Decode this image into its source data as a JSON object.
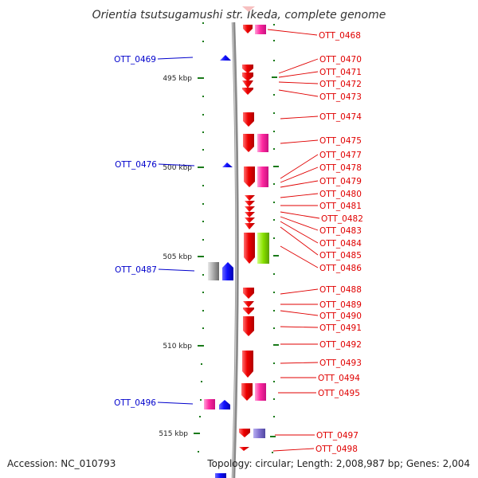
{
  "diagram": {
    "title": "Orientia tsutsugamushi str. Ikeda, complete genome",
    "accession": "Accession: NC_010793",
    "topology": "Topology: circular; Length: 2,008,987 bp; Genes: 2,004",
    "kbp_ticks": [
      "495 kbp",
      "500 kbp",
      "505 kbp",
      "510 kbp",
      "515 kbp"
    ],
    "colors": {
      "cds": "#ee0000",
      "rna": "#ff2aa0",
      "feature_gray": "#a8a8a8",
      "feature_green": "#88e000",
      "feature_purple": "#8070d0",
      "minus_strand": "#1010ff",
      "label_right": "#e00000",
      "label_left": "#0000cc",
      "backbone": "#888888",
      "tick": "#1a7a1a"
    },
    "right_labels": [
      "OTT_0468",
      "OTT_0470",
      "OTT_0471",
      "OTT_0472",
      "OTT_0473",
      "OTT_0474",
      "OTT_0475",
      "OTT_0477",
      "OTT_0478",
      "OTT_0479",
      "OTT_0480",
      "OTT_0481",
      "OTT_0482",
      "OTT_0483",
      "OTT_0484",
      "OTT_0485",
      "OTT_0486",
      "OTT_0488",
      "OTT_0489",
      "OTT_0490",
      "OTT_0491",
      "OTT_0492",
      "OTT_0493",
      "OTT_0494",
      "OTT_0495",
      "OTT_0497",
      "OTT_0498"
    ],
    "left_labels": [
      "OTT_0469",
      "OTT_0476",
      "OTT_0487",
      "OTT_0496"
    ]
  }
}
